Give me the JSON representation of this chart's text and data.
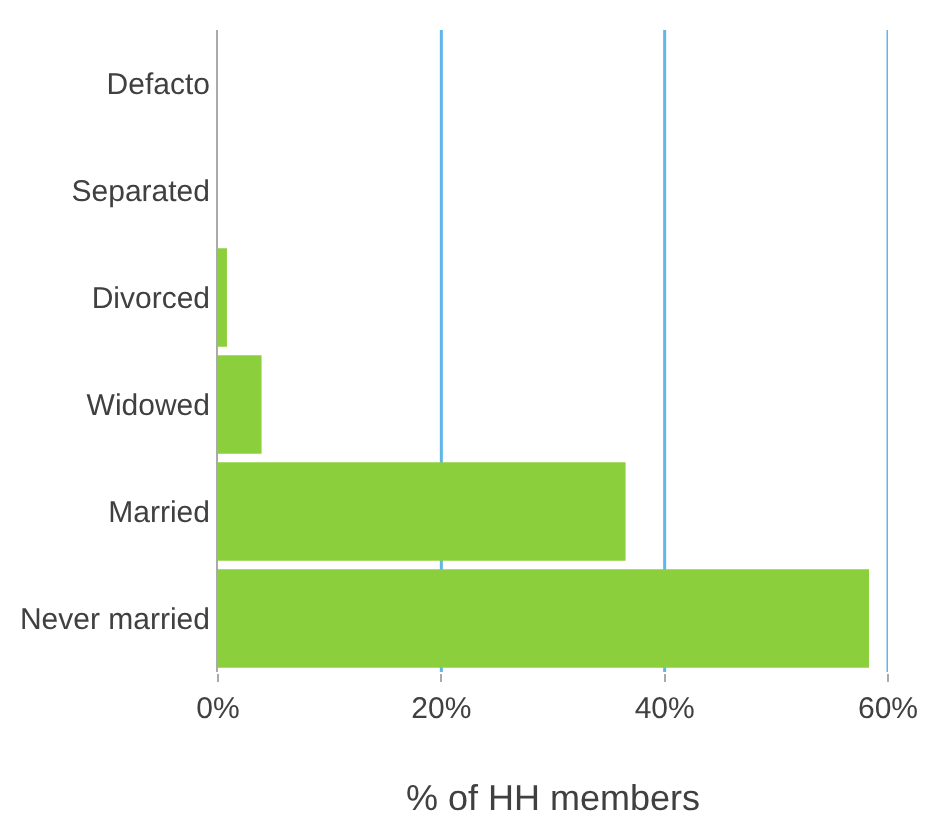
{
  "chart_data": {
    "type": "bar",
    "orientation": "horizontal",
    "xlabel": "% of HH members",
    "categories": [
      "Defacto",
      "Separated",
      "Divorced",
      "Widowed",
      "Married",
      "Never married"
    ],
    "values": [
      0,
      0,
      0.8,
      3.9,
      36.5,
      58.3
    ],
    "color": "#8ccf3c",
    "xlim": [
      0,
      60
    ],
    "xticks": [
      {
        "value": 0,
        "label": "0%"
      },
      {
        "value": 20,
        "label": "20%"
      },
      {
        "value": 40,
        "label": "40%"
      },
      {
        "value": 60,
        "label": "60%"
      }
    ],
    "grid": "x"
  }
}
